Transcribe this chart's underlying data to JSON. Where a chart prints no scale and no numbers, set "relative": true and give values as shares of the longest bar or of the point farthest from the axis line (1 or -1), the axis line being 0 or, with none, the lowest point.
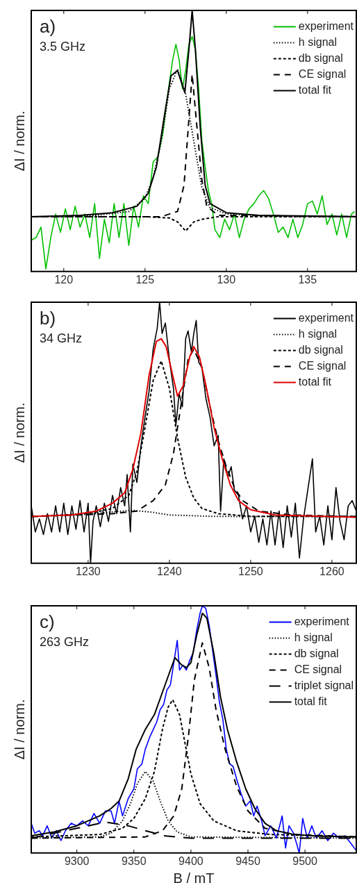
{
  "chart_data": [
    {
      "type": "line",
      "ylabel": "ΔI / norm.",
      "annotations": [
        "a)",
        "3.5 GHz"
      ],
      "xlim": [
        118,
        138
      ],
      "xticks": [
        120,
        125,
        130,
        135
      ],
      "relative": true,
      "tick_labels": "x",
      "legend": "top right",
      "marker": "none",
      "series": [
        {
          "name": "experiment",
          "color": "#00c000",
          "line_style": "solid",
          "x": [
            118.0,
            118.3,
            118.6,
            118.9,
            119.2,
            119.5,
            119.8,
            120.1,
            120.4,
            120.7,
            121.0,
            121.3,
            121.6,
            121.9,
            122.2,
            122.5,
            122.8,
            123.1,
            123.4,
            123.7,
            124.0,
            124.3,
            124.6,
            124.9,
            125.2,
            125.5,
            125.8,
            126.1,
            126.4,
            126.7,
            126.9,
            127.1,
            127.3,
            127.5,
            127.7,
            127.9,
            128.1,
            128.3,
            128.5,
            128.7,
            128.9,
            129.1,
            129.3,
            129.6,
            129.9,
            130.2,
            130.5,
            130.8,
            131.1,
            131.4,
            131.7,
            132.0,
            132.3,
            132.6,
            132.9,
            133.2,
            133.5,
            133.8,
            134.1,
            134.4,
            134.7,
            135.0,
            135.3,
            135.6,
            135.9,
            136.2,
            136.5,
            136.8,
            137.1,
            137.4,
            137.7,
            137.9
          ],
          "values": [
            0.12,
            0.13,
            0.17,
            0.01,
            0.13,
            0.22,
            0.15,
            0.24,
            0.16,
            0.25,
            0.17,
            0.22,
            0.13,
            0.26,
            0.05,
            0.2,
            0.11,
            0.26,
            0.13,
            0.26,
            0.1,
            0.25,
            0.17,
            0.29,
            0.26,
            0.42,
            0.44,
            0.53,
            0.68,
            0.81,
            0.87,
            0.81,
            0.7,
            0.77,
            0.87,
            0.9,
            0.85,
            0.7,
            0.5,
            0.4,
            0.31,
            0.26,
            0.16,
            0.13,
            0.2,
            0.16,
            0.22,
            0.13,
            0.2,
            0.24,
            0.26,
            0.29,
            0.31,
            0.28,
            0.22,
            0.15,
            0.17,
            0.13,
            0.2,
            0.13,
            0.18,
            0.26,
            0.27,
            0.22,
            0.29,
            0.18,
            0.22,
            0.14,
            0.22,
            0.13,
            0.22,
            0.23
          ]
        },
        {
          "name": "h signal",
          "color": "#000000",
          "line_style": "dotted",
          "x": [
            118,
            122,
            124,
            125,
            125.5,
            126,
            126.5,
            127,
            127.5,
            128,
            128.5,
            129,
            130,
            134,
            138
          ],
          "values": [
            0.21,
            0.215,
            0.23,
            0.28,
            0.36,
            0.5,
            0.7,
            0.775,
            0.68,
            0.5,
            0.32,
            0.245,
            0.22,
            0.21,
            0.21
          ]
        },
        {
          "name": "db signal",
          "color": "#000000",
          "line_style": "dashed",
          "x": [
            118,
            125,
            126.5,
            127,
            127.5,
            128,
            128.5,
            129.5,
            138
          ],
          "values": [
            0.21,
            0.21,
            0.205,
            0.19,
            0.155,
            0.19,
            0.2,
            0.21,
            0.21
          ]
        },
        {
          "name": "CE signal",
          "color": "#000000",
          "line_style": "dashed",
          "x": [
            118,
            126,
            127,
            127.4,
            127.6,
            127.9,
            128.2,
            128.5,
            128.8,
            129.5,
            138
          ],
          "values": [
            0.21,
            0.21,
            0.23,
            0.33,
            0.5,
            0.755,
            0.55,
            0.35,
            0.25,
            0.215,
            0.21
          ]
        },
        {
          "name": "total fit",
          "color": "#000000",
          "line_style": "solid",
          "x": [
            118,
            121,
            123,
            124.5,
            125.2,
            125.7,
            126.2,
            126.6,
            127.0,
            127.45,
            127.7,
            127.9,
            128.1,
            128.4,
            128.7,
            129,
            130,
            132,
            138
          ],
          "values": [
            0.21,
            0.215,
            0.225,
            0.25,
            0.3,
            0.4,
            0.6,
            0.75,
            0.77,
            0.685,
            0.85,
            1.0,
            0.85,
            0.55,
            0.33,
            0.26,
            0.225,
            0.215,
            0.21
          ]
        }
      ]
    },
    {
      "type": "line",
      "ylabel": "ΔI / norm.",
      "annotations": [
        "b)",
        "34 GHz"
      ],
      "xlim": [
        1223,
        1263
      ],
      "xticks": [
        1230,
        1240,
        1250,
        1260
      ],
      "relative": true,
      "tick_labels": "x",
      "legend": "top right",
      "marker": "none",
      "series": [
        {
          "name": "experiment",
          "color": "#000000",
          "line_style": "solid",
          "x": [
            1223,
            1223.5,
            1224,
            1224.5,
            1225,
            1225.5,
            1226,
            1226.5,
            1227,
            1227.5,
            1228,
            1228.5,
            1229,
            1229.5,
            1230,
            1230.3,
            1230.6,
            1231,
            1231.5,
            1232,
            1232.5,
            1233,
            1233.5,
            1234,
            1234.5,
            1234.8,
            1235.2,
            1235.5,
            1236,
            1236.5,
            1237,
            1237.5,
            1238,
            1238.5,
            1238.8,
            1239.1,
            1239.5,
            1240,
            1240.5,
            1240.8,
            1241.2,
            1241.6,
            1242,
            1242.3,
            1242.7,
            1243,
            1243.3,
            1243.6,
            1244,
            1244.5,
            1245,
            1245.5,
            1246,
            1246.3,
            1246.7,
            1247.2,
            1247.6,
            1248,
            1248.5,
            1249,
            1249.5,
            1250,
            1250.5,
            1251,
            1251.5,
            1252,
            1252.5,
            1253,
            1253.5,
            1254,
            1254.5,
            1255,
            1255.5,
            1256,
            1256.5,
            1257.6,
            1258,
            1258.5,
            1259,
            1259.5,
            1260,
            1260.5,
            1261,
            1261.5,
            1262,
            1262.5,
            1263
          ],
          "values": [
            0.22,
            0.12,
            0.17,
            0.11,
            0.19,
            0.12,
            0.22,
            0.12,
            0.23,
            0.11,
            0.22,
            0.13,
            0.24,
            0.12,
            0.23,
            0.0,
            0.16,
            0.22,
            0.14,
            0.23,
            0.16,
            0.26,
            0.19,
            0.29,
            0.22,
            0.34,
            0.12,
            0.38,
            0.31,
            0.45,
            0.56,
            0.66,
            0.82,
            0.9,
            1.0,
            0.88,
            0.92,
            0.78,
            0.67,
            0.53,
            0.65,
            0.6,
            0.86,
            0.89,
            0.81,
            0.88,
            0.93,
            0.77,
            0.75,
            0.63,
            0.56,
            0.45,
            0.49,
            0.2,
            0.4,
            0.33,
            0.37,
            0.28,
            0.26,
            0.17,
            0.22,
            0.12,
            0.18,
            0.08,
            0.17,
            0.07,
            0.2,
            0.07,
            0.2,
            0.06,
            0.22,
            0.1,
            0.23,
            0.02,
            0.17,
            0.4,
            0.12,
            0.18,
            0.07,
            0.22,
            0.09,
            0.29,
            0.16,
            0.09,
            0.22,
            0.24,
            0.2
          ]
        },
        {
          "name": "h signal",
          "color": "#000000",
          "line_style": "dotted",
          "x": [
            1223,
            1230,
            1233,
            1235.5,
            1238,
            1240,
            1245,
            1250,
            1263
          ],
          "values": [
            0.179,
            0.188,
            0.197,
            0.203,
            0.195,
            0.185,
            0.18,
            0.179,
            0.179
          ]
        },
        {
          "name": "db signal",
          "color": "#000000",
          "line_style": "dashed",
          "x": [
            1223,
            1230,
            1233,
            1235,
            1236,
            1237,
            1238,
            1239,
            1240,
            1241,
            1242,
            1243,
            1244,
            1246,
            1250,
            1263
          ],
          "values": [
            0.179,
            0.19,
            0.21,
            0.26,
            0.35,
            0.52,
            0.7,
            0.775,
            0.67,
            0.48,
            0.33,
            0.25,
            0.21,
            0.19,
            0.18,
            0.179
          ]
        },
        {
          "name": "CE signal",
          "color": "#000000",
          "line_style": "dashed",
          "x": [
            1223,
            1233,
            1236,
            1238,
            1239.5,
            1240.5,
            1241.5,
            1242.3,
            1243,
            1244,
            1245,
            1246,
            1247,
            1248,
            1249,
            1251,
            1255,
            1263
          ],
          "values": [
            0.179,
            0.19,
            0.2,
            0.24,
            0.3,
            0.42,
            0.62,
            0.78,
            0.82,
            0.75,
            0.6,
            0.47,
            0.37,
            0.29,
            0.24,
            0.2,
            0.185,
            0.179
          ]
        },
        {
          "name": "total fit",
          "color": "#e00000",
          "line_style": "solid",
          "x": [
            1223,
            1228,
            1231,
            1233,
            1234.5,
            1235.5,
            1236.5,
            1237.5,
            1238.4,
            1239,
            1239.6,
            1240.4,
            1241,
            1241.7,
            1242.5,
            1243,
            1243.7,
            1244.5,
            1245.5,
            1246.5,
            1247.5,
            1248.5,
            1250,
            1253,
            1263
          ],
          "values": [
            0.179,
            0.185,
            0.2,
            0.23,
            0.27,
            0.36,
            0.5,
            0.72,
            0.85,
            0.86,
            0.83,
            0.72,
            0.64,
            0.68,
            0.79,
            0.83,
            0.79,
            0.68,
            0.52,
            0.4,
            0.3,
            0.24,
            0.205,
            0.185,
            0.176
          ]
        }
      ]
    },
    {
      "type": "line",
      "xlabel": "B / mT",
      "ylabel": "ΔI / norm.",
      "annotations": [
        "c)",
        "263 GHz"
      ],
      "xlim": [
        9260,
        9545
      ],
      "xticks": [
        9300,
        9350,
        9400,
        9450,
        9500
      ],
      "relative": true,
      "tick_labels": "x",
      "legend": "top right",
      "marker": "none",
      "series": [
        {
          "name": "experiment",
          "color": "#0000ff",
          "line_style": "solid",
          "x": [
            9260,
            9263,
            9267,
            9270,
            9274,
            9278,
            9282,
            9286,
            9290,
            9295,
            9300,
            9305,
            9310,
            9315,
            9320,
            9325,
            9330,
            9333,
            9337,
            9340,
            9345,
            9350,
            9353,
            9357,
            9360,
            9364,
            9367,
            9370,
            9373,
            9376,
            9379,
            9382,
            9384,
            9386,
            9388,
            9390,
            9393,
            9396,
            9399,
            9402,
            9405,
            9408,
            9410,
            9413,
            9416,
            9419,
            9422,
            9425,
            9428,
            9431,
            9434,
            9437,
            9440,
            9444,
            9448,
            9452,
            9455,
            9458,
            9462,
            9465,
            9470,
            9475,
            9480,
            9483,
            9486,
            9490,
            9495,
            9498,
            9502,
            9506,
            9510,
            9515,
            9520,
            9525,
            9530,
            9535,
            9540,
            9545
          ],
          "values": [
            0.12,
            0.08,
            0.09,
            0.07,
            0.11,
            0.06,
            0.09,
            0.05,
            0.09,
            0.12,
            0.11,
            0.13,
            0.11,
            0.16,
            0.12,
            0.17,
            0.17,
            0.12,
            0.21,
            0.15,
            0.22,
            0.26,
            0.34,
            0.36,
            0.42,
            0.47,
            0.5,
            0.53,
            0.58,
            0.6,
            0.66,
            0.68,
            0.74,
            0.8,
            0.86,
            0.74,
            0.76,
            0.74,
            0.78,
            0.81,
            0.9,
            0.97,
            1.0,
            0.99,
            0.92,
            0.82,
            0.72,
            0.61,
            0.54,
            0.42,
            0.36,
            0.35,
            0.3,
            0.24,
            0.19,
            0.21,
            0.15,
            0.19,
            0.13,
            0.07,
            0.11,
            0.06,
            0.15,
            0.02,
            0.11,
            0.08,
            0.0,
            0.14,
            0.06,
            0.11,
            0.06,
            0.09,
            0.05,
            0.08,
            0.06,
            0.07,
            0.04,
            0.01
          ]
        },
        {
          "name": "h signal",
          "color": "#000000",
          "line_style": "dotted",
          "x": [
            9260,
            9320,
            9330,
            9340,
            9347,
            9353,
            9360,
            9367,
            9373,
            9380,
            9388,
            9400,
            9545
          ],
          "values": [
            0.06,
            0.065,
            0.08,
            0.13,
            0.2,
            0.28,
            0.33,
            0.29,
            0.21,
            0.13,
            0.085,
            0.065,
            0.06
          ]
        },
        {
          "name": "db signal",
          "color": "#000000",
          "line_style": "dashed",
          "x": [
            9260,
            9320,
            9340,
            9350,
            9360,
            9368,
            9375,
            9380,
            9384,
            9390,
            9395,
            9400,
            9408,
            9420,
            9440,
            9470,
            9545
          ],
          "values": [
            0.065,
            0.075,
            0.1,
            0.14,
            0.22,
            0.33,
            0.5,
            0.59,
            0.62,
            0.56,
            0.44,
            0.32,
            0.2,
            0.13,
            0.09,
            0.075,
            0.065
          ]
        },
        {
          "name": "CE signal",
          "color": "#000000",
          "line_style": "dashed",
          "x": [
            9260,
            9360,
            9375,
            9385,
            9392,
            9398,
            9403,
            9410,
            9416,
            9422,
            9430,
            9440,
            9450,
            9465,
            9490,
            9545
          ],
          "values": [
            0.06,
            0.065,
            0.09,
            0.15,
            0.26,
            0.48,
            0.7,
            0.85,
            0.75,
            0.58,
            0.42,
            0.27,
            0.17,
            0.1,
            0.075,
            0.065
          ]
        },
        {
          "name": "triplet signal",
          "color": "#000000",
          "line_style": "dashed",
          "x": [
            9260,
            9290,
            9325,
            9345,
            9360,
            9366,
            9375,
            9400,
            9545
          ],
          "values": [
            0.06,
            0.09,
            0.125,
            0.11,
            0.09,
            0.083,
            0.07,
            0.06,
            0.06
          ]
        },
        {
          "name": "total fit",
          "color": "#000000",
          "line_style": "solid",
          "x": [
            9260,
            9280,
            9300,
            9320,
            9330,
            9337,
            9345,
            9352,
            9360,
            9368,
            9375,
            9382,
            9386,
            9392,
            9396,
            9400,
            9405,
            9410,
            9414,
            9420,
            9426,
            9432,
            9440,
            9448,
            9456,
            9465,
            9475,
            9490,
            9510,
            9545
          ],
          "values": [
            0.07,
            0.085,
            0.11,
            0.15,
            0.18,
            0.21,
            0.3,
            0.42,
            0.5,
            0.56,
            0.65,
            0.74,
            0.79,
            0.76,
            0.75,
            0.77,
            0.88,
            0.97,
            0.95,
            0.81,
            0.63,
            0.5,
            0.37,
            0.26,
            0.18,
            0.12,
            0.09,
            0.075,
            0.068,
            0.065
          ]
        }
      ]
    }
  ]
}
